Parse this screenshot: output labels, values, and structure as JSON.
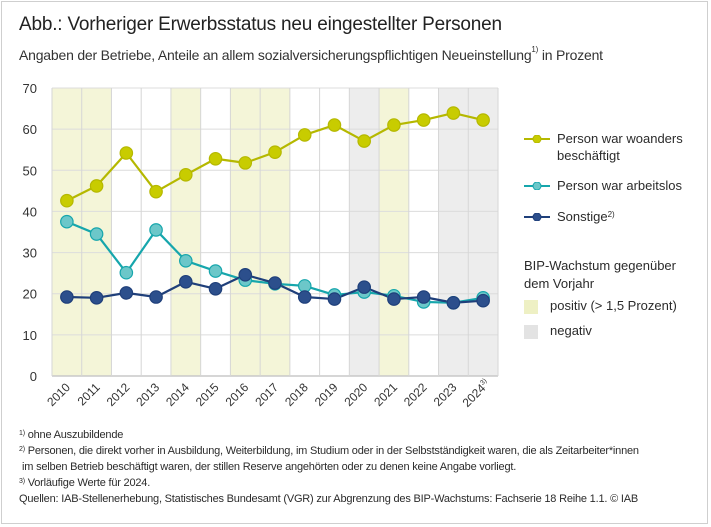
{
  "header": {
    "title": "Abb.: Vorheriger Erwerbsstatus neu eingestellter Personen",
    "subtitle_main": "Angaben der Betriebe, Anteile an allem sozialversicherungspflichtigen Neueinstellung",
    "subtitle_sup": "1)",
    "subtitle_end": " in Prozent"
  },
  "colors": {
    "woanders": "#b5b800",
    "woanders_fill": "#c8cc00",
    "arbeitslos": "#16a6ac",
    "arbeitslos_fill": "#6cc7c9",
    "sonstige": "#1f3f7a",
    "sonstige_fill": "#2c4f8c",
    "positive_band": "#f4f5d8",
    "negative_band": "#ededed"
  },
  "chart_data": {
    "type": "line",
    "title": "Vorheriger Erwerbsstatus neu eingestellter Personen",
    "xlabel": "",
    "ylabel": "Prozent",
    "ylim": [
      0,
      70
    ],
    "yticks": [
      0,
      10,
      20,
      30,
      40,
      50,
      60,
      70
    ],
    "grid": true,
    "legend_position": "right",
    "categories": [
      "2010",
      "2011",
      "2012",
      "2013",
      "2014",
      "2015",
      "2016",
      "2017",
      "2018",
      "2019",
      "2020",
      "2021",
      "2022",
      "2023",
      "2024"
    ],
    "category_footnotes": {
      "2024": "3)"
    },
    "series": [
      {
        "name": "Person war woanders beschäftigt",
        "key": "woanders",
        "values": [
          42.6,
          46.2,
          54.2,
          44.8,
          48.9,
          52.8,
          51.8,
          54.4,
          58.6,
          61.0,
          57.1,
          61.0,
          62.2,
          63.9,
          62.2
        ]
      },
      {
        "name": "Person war arbeitslos",
        "key": "arbeitslos",
        "values": [
          37.5,
          34.5,
          25.1,
          35.5,
          28.0,
          25.5,
          23.3,
          22.4,
          21.9,
          19.7,
          20.4,
          19.5,
          18.0,
          17.8,
          19.0
        ]
      },
      {
        "name": "Sonstige",
        "key": "sonstige",
        "footnote": "2)",
        "values": [
          19.2,
          19.0,
          20.2,
          19.2,
          22.9,
          21.2,
          24.6,
          22.6,
          19.2,
          18.7,
          21.6,
          18.7,
          19.2,
          17.8,
          18.3
        ]
      }
    ],
    "background_bands": [
      {
        "category": "2010",
        "type": "positiv"
      },
      {
        "category": "2011",
        "type": "positiv"
      },
      {
        "category": "2014",
        "type": "positiv"
      },
      {
        "category": "2016",
        "type": "positiv"
      },
      {
        "category": "2017",
        "type": "positiv"
      },
      {
        "category": "2020",
        "type": "negativ"
      },
      {
        "category": "2021",
        "type": "positiv"
      },
      {
        "category": "2023",
        "type": "negativ"
      },
      {
        "category": "2024",
        "type": "negativ"
      }
    ]
  },
  "legend": {
    "items": [
      {
        "label_line1": "Person war woanders",
        "label_line2": "beschäftigt"
      },
      {
        "label_line1": "Person war arbeitslos"
      },
      {
        "label_line1": "Sonstige",
        "sup": "2)"
      }
    ],
    "bip_title_line1": "BIP-Wachstum gegenüber",
    "bip_title_line2": "dem Vorjahr",
    "positive_label": "positiv (> 1,5 Prozent)",
    "negative_label": "negativ"
  },
  "footnotes": {
    "fn1_mark": "1)",
    "fn1_text": "ohne Auszubildende",
    "fn2_mark": "2)",
    "fn2_line1": "Personen, die direkt vorher in Ausbildung, Weiterbildung, im Studium oder in der Selbstständigkeit waren, die als Zeitarbeiter*innen",
    "fn2_line2": "im selben Betrieb beschäftigt waren, der stillen Reserve angehörten oder zu denen keine Angabe vorliegt.",
    "fn3_mark": "3)",
    "fn3_text": "Vorläufige Werte für 2024.",
    "sources": "Quellen: IAB-Stellenerhebung, Statistisches Bundesamt (VGR) zur Abgrenzung des BIP-Wachstums: Fachserie 18 Reihe 1.1. © IAB"
  }
}
